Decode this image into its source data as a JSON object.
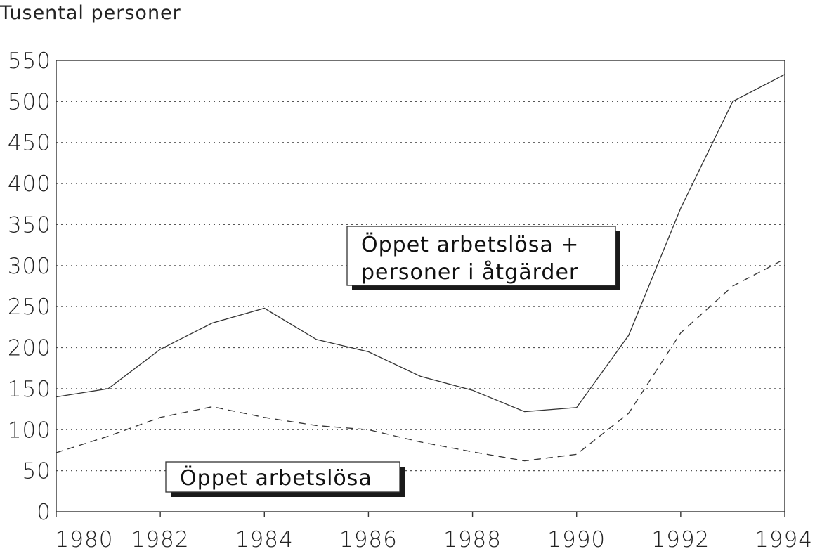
{
  "chart_data": {
    "type": "line",
    "ylabel": "Tusental personer",
    "x": [
      1980,
      1981,
      1982,
      1983,
      1984,
      1985,
      1986,
      1987,
      1988,
      1989,
      1990,
      1991,
      1992,
      1993,
      1994
    ],
    "xticks": [
      "1980",
      "1982",
      "1984",
      "1986",
      "1988",
      "1990",
      "1992",
      "1994"
    ],
    "yticks": [
      "0",
      "50",
      "100",
      "150",
      "200",
      "250",
      "300",
      "350",
      "400",
      "450",
      "500",
      "550"
    ],
    "xlim": [
      1980,
      1994
    ],
    "ylim": [
      0,
      550
    ],
    "grid": "horizontal-dotted",
    "series": [
      {
        "name": "Öppet arbetslösa + personer i åtgärder",
        "label_lines": [
          "Öppet arbetslösa +",
          "personer i åtgärder"
        ],
        "style": "solid",
        "values": [
          140,
          150,
          198,
          230,
          248,
          210,
          195,
          165,
          148,
          122,
          127,
          215,
          370,
          500,
          533
        ]
      },
      {
        "name": "Öppet arbetslösa",
        "label_lines": [
          "Öppet arbetslösa"
        ],
        "style": "dashed",
        "values": [
          72,
          92,
          115,
          128,
          115,
          105,
          100,
          85,
          73,
          62,
          70,
          120,
          218,
          275,
          308
        ]
      }
    ]
  }
}
